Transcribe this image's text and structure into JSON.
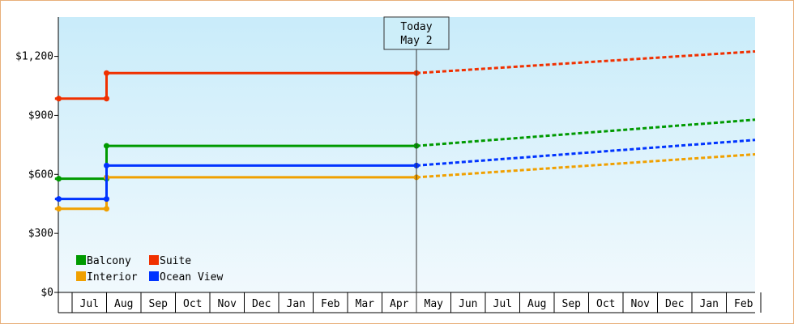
{
  "chart_data": {
    "type": "line",
    "title": "",
    "xlabel": "",
    "ylabel": "",
    "ylim": [
      0,
      1400
    ],
    "yticks": [
      {
        "value": 0,
        "label": "$0"
      },
      {
        "value": 300,
        "label": "$300"
      },
      {
        "value": 600,
        "label": "$600"
      },
      {
        "value": 900,
        "label": "$900"
      },
      {
        "value": 1200,
        "label": "$1,200"
      }
    ],
    "months": [
      "Jul",
      "Aug",
      "Sep",
      "Oct",
      "Nov",
      "Dec",
      "Jan",
      "Feb",
      "Mar",
      "Apr",
      "May",
      "Jun",
      "Jul",
      "Aug",
      "Sep",
      "Oct",
      "Nov",
      "Dec",
      "Jan",
      "Feb"
    ],
    "today": {
      "line1": "Today",
      "line2": "May 2",
      "x": 10.0
    },
    "x_note": "x values are months from Jul 1 (0 = Jul 1, 10 = May 1)",
    "series": [
      {
        "name": "Balcony",
        "color": "#009a00",
        "history": [
          [
            -0.5,
            578
          ],
          [
            1.0,
            578
          ],
          [
            1.0,
            745
          ],
          [
            10.0,
            745
          ]
        ],
        "forecast": [
          [
            10.0,
            745
          ],
          [
            20.9,
            878
          ]
        ]
      },
      {
        "name": "Suite",
        "color": "#f03000",
        "history": [
          [
            -0.5,
            985
          ],
          [
            1.0,
            985
          ],
          [
            1.0,
            1115
          ],
          [
            10.0,
            1115
          ]
        ],
        "forecast": [
          [
            10.0,
            1115
          ],
          [
            20.9,
            1225
          ]
        ]
      },
      {
        "name": "Interior",
        "color": "#f0a000",
        "history": [
          [
            -0.5,
            425
          ],
          [
            1.0,
            425
          ],
          [
            1.0,
            585
          ],
          [
            10.0,
            585
          ]
        ],
        "forecast": [
          [
            10.0,
            585
          ],
          [
            20.9,
            702
          ]
        ]
      },
      {
        "name": "Ocean View",
        "color": "#0033ff",
        "history": [
          [
            -0.5,
            475
          ],
          [
            1.0,
            475
          ],
          [
            1.0,
            645
          ],
          [
            10.0,
            645
          ]
        ],
        "forecast": [
          [
            10.0,
            645
          ],
          [
            20.9,
            775
          ]
        ]
      }
    ],
    "legend": {
      "position": "bottom-left",
      "order": [
        "Balcony",
        "Suite",
        "Interior",
        "Ocean View"
      ]
    },
    "grid": false
  }
}
